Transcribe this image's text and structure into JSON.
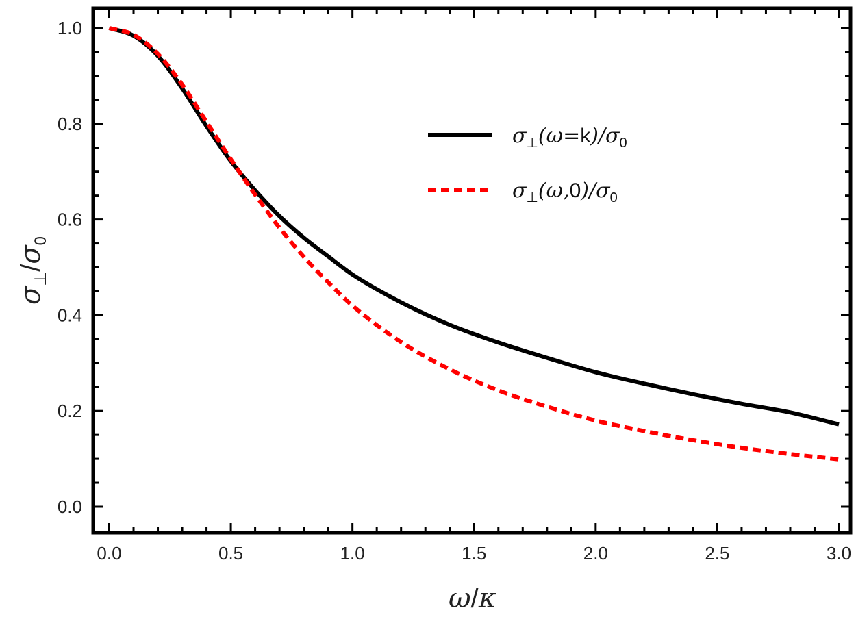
{
  "chart_data": {
    "type": "line",
    "title": "",
    "xlabel": "ω/κ",
    "xlabel_parts": {
      "num": "ω",
      "den": "κ"
    },
    "ylabel": "σ⊥/σ0",
    "ylabel_parts": {
      "sym": "σ",
      "sub": "⊥",
      "sym2": "σ",
      "sub2": "0"
    },
    "xlim": [
      -0.07,
      3.05
    ],
    "ylim": [
      -0.057,
      1.05
    ],
    "xticks": [
      0.0,
      0.5,
      1.0,
      1.5,
      2.0,
      2.5,
      3.0
    ],
    "xtick_labels": [
      "0.0",
      "0.5",
      "1.0",
      "1.5",
      "2.0",
      "2.5",
      "3.0"
    ],
    "yticks": [
      0.0,
      0.2,
      0.4,
      0.6,
      0.8,
      1.0
    ],
    "ytick_labels": [
      "0.0",
      "0.2",
      "0.4",
      "0.6",
      "0.8",
      "1.0"
    ],
    "grid": false,
    "legend_position": "upper-right",
    "x": [
      0.0,
      0.1,
      0.2,
      0.3,
      0.4,
      0.5,
      0.6,
      0.7,
      0.8,
      0.9,
      1.0,
      1.2,
      1.4,
      1.6,
      1.8,
      2.0,
      2.2,
      2.4,
      2.6,
      2.8,
      3.0
    ],
    "series": [
      {
        "name": "σ⊥(ω=k)/σ0",
        "legend_parts": {
          "a": "σ",
          "sub": "⊥",
          "b": "(ω=",
          "c": "k",
          "d": ")/σ",
          "sub2": "0"
        },
        "color": "#000000",
        "style": "solid",
        "values": [
          1.0,
          0.984,
          0.942,
          0.874,
          0.795,
          0.722,
          0.661,
          0.607,
          0.562,
          0.523,
          0.485,
          0.427,
          0.38,
          0.343,
          0.311,
          0.281,
          0.257,
          0.235,
          0.215,
          0.197,
          0.172
        ]
      },
      {
        "name": "σ⊥(ω,0)/σ0",
        "legend_parts": {
          "a": "σ",
          "sub": "⊥",
          "b": "(ω,",
          "c": "0",
          "d": ")/σ",
          "sub2": "0"
        },
        "color": "#ff0000",
        "style": "dashed",
        "values": [
          1.0,
          0.986,
          0.946,
          0.882,
          0.804,
          0.726,
          0.652,
          0.583,
          0.522,
          0.469,
          0.42,
          0.344,
          0.287,
          0.243,
          0.209,
          0.18,
          0.158,
          0.139,
          0.123,
          0.11,
          0.099
        ]
      }
    ]
  }
}
